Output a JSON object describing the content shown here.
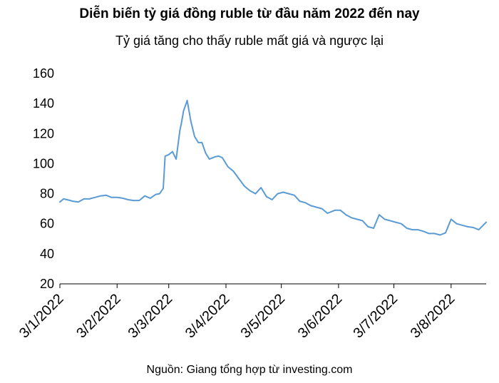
{
  "chart_data": {
    "type": "line",
    "title": "Diễn biến tỷ giá đồng ruble từ đầu năm 2022 đến nay",
    "subtitle": "Tỷ giá tăng cho thấy ruble mất giá và ngược lại",
    "source": "Nguồn: Giang tổng hợp từ investing.com",
    "xlabel": "",
    "ylabel": "",
    "ylim": [
      20,
      160
    ],
    "yticks": [
      "20",
      "40",
      "60",
      "80",
      "100",
      "120",
      "140",
      "160"
    ],
    "xticks": [
      "3/1/2022",
      "3/2/2022",
      "3/3/2022",
      "3/4/2022",
      "3/5/2022",
      "3/6/2022",
      "3/7/2022",
      "3/8/2022"
    ],
    "xlim": [
      "2022-01-03",
      "2022-08-22"
    ],
    "grid": false,
    "series_color": "#5b9bd5",
    "series": [
      {
        "dates": [
          "2022-01-03",
          "2022-01-05",
          "2022-01-07",
          "2022-01-10",
          "2022-01-13",
          "2022-01-16",
          "2022-01-19",
          "2022-01-22",
          "2022-01-25",
          "2022-01-28",
          "2022-01-31",
          "2022-02-03",
          "2022-02-06",
          "2022-02-09",
          "2022-02-12",
          "2022-02-15",
          "2022-02-18",
          "2022-02-21",
          "2022-02-24",
          "2022-02-26",
          "2022-02-28",
          "2022-03-01",
          "2022-03-03",
          "2022-03-05",
          "2022-03-07",
          "2022-03-09",
          "2022-03-10",
          "2022-03-11",
          "2022-03-13",
          "2022-03-15",
          "2022-03-17",
          "2022-03-19",
          "2022-03-21",
          "2022-03-23",
          "2022-03-25",
          "2022-03-28",
          "2022-03-30",
          "2022-04-01",
          "2022-04-04",
          "2022-04-07",
          "2022-04-10",
          "2022-04-13",
          "2022-04-16",
          "2022-04-19",
          "2022-04-22",
          "2022-04-25",
          "2022-04-28",
          "2022-05-01",
          "2022-05-04",
          "2022-05-07",
          "2022-05-10",
          "2022-05-13",
          "2022-05-16",
          "2022-05-19",
          "2022-05-22",
          "2022-05-25",
          "2022-05-28",
          "2022-06-01",
          "2022-06-04",
          "2022-06-07",
          "2022-06-10",
          "2022-06-13",
          "2022-06-16",
          "2022-06-19",
          "2022-06-22",
          "2022-06-25",
          "2022-06-28",
          "2022-07-01",
          "2022-07-04",
          "2022-07-07",
          "2022-07-10",
          "2022-07-13",
          "2022-07-16",
          "2022-07-19",
          "2022-07-22",
          "2022-07-25",
          "2022-07-28",
          "2022-07-31",
          "2022-08-03",
          "2022-08-06",
          "2022-08-09",
          "2022-08-12",
          "2022-08-15",
          "2022-08-18",
          "2022-08-22"
        ],
        "values": [
          74.5,
          76.5,
          76,
          75,
          74.5,
          76.5,
          76.5,
          77.5,
          78.5,
          79,
          77.5,
          77.5,
          77,
          76,
          75.5,
          75.5,
          78.5,
          77,
          79.5,
          80,
          83.5,
          105,
          106,
          108,
          103,
          122,
          128,
          135,
          142,
          128,
          118,
          114,
          114,
          107,
          103,
          104.5,
          105,
          104,
          98,
          95,
          90,
          85,
          82,
          80,
          84,
          78,
          76,
          80,
          81,
          80,
          79,
          75,
          74,
          72,
          71,
          70,
          67,
          69,
          69,
          66,
          64,
          63,
          62,
          58,
          57,
          66,
          63,
          62,
          61,
          60,
          57,
          56,
          56,
          55,
          53.5,
          53.5,
          52.5,
          54,
          63,
          60,
          59,
          58,
          57.5,
          56,
          61
        ]
      }
    ]
  }
}
